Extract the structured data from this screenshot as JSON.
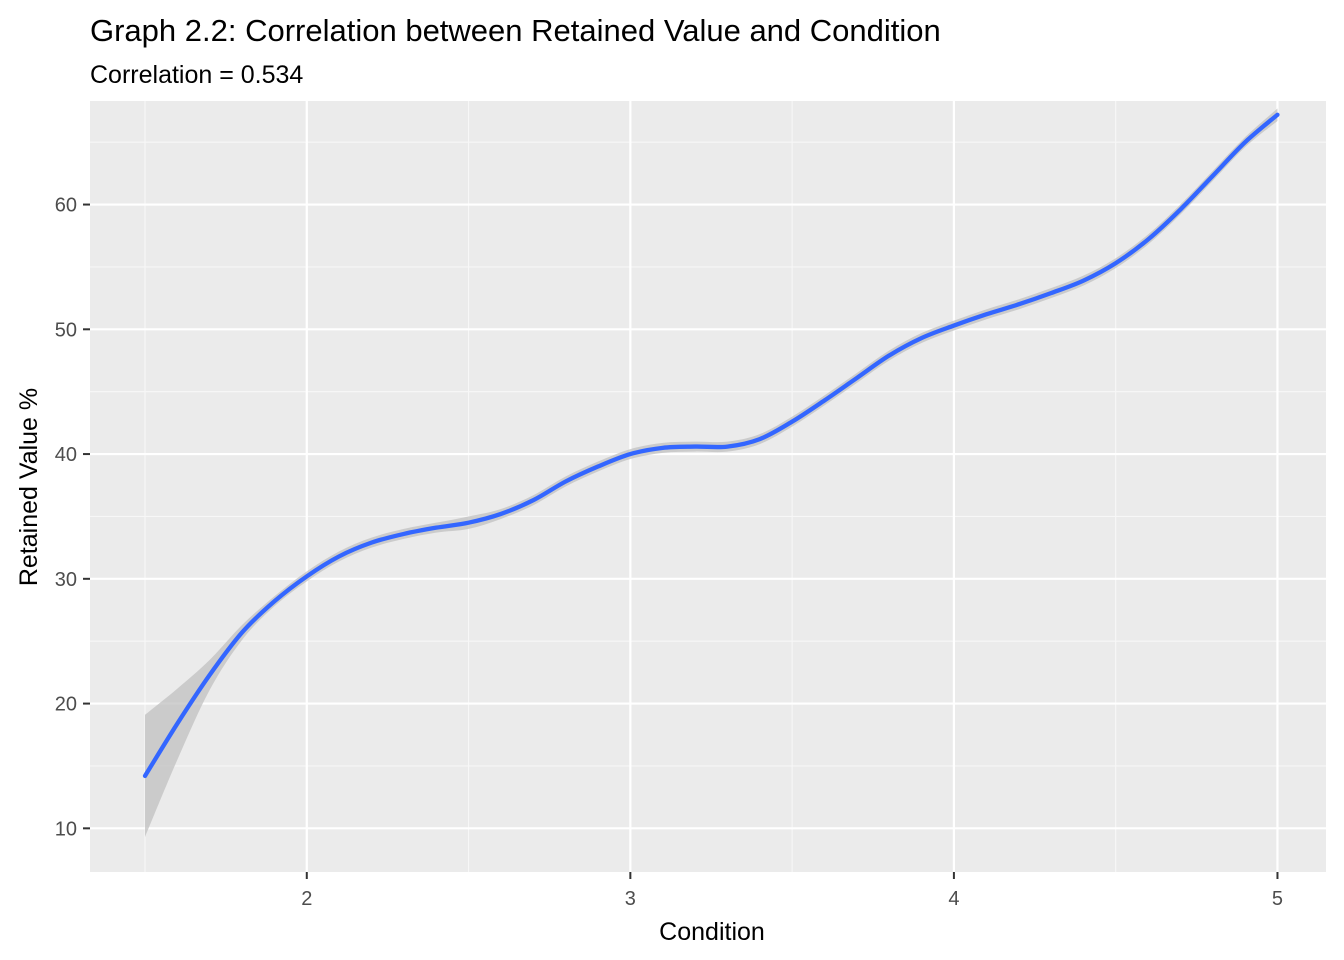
{
  "chart_data": {
    "type": "line",
    "title": "Graph 2.2: Correlation between Retained Value and Condition",
    "subtitle": "Correlation = 0.534",
    "xlabel": "Condition",
    "ylabel": "Retained Value %",
    "xlim": [
      1.33,
      5.15
    ],
    "ylim": [
      6.5,
      68.3
    ],
    "x_ticks": [
      2,
      3,
      4,
      5
    ],
    "x_tick_labels": [
      "2",
      "3",
      "4",
      "5"
    ],
    "y_ticks": [
      10,
      20,
      30,
      40,
      50,
      60
    ],
    "y_tick_labels": [
      "10",
      "20",
      "30",
      "40",
      "50",
      "60"
    ],
    "grid": true,
    "series": [
      {
        "x": [
          1.5,
          1.6,
          1.7,
          1.8,
          1.9,
          2.0,
          2.1,
          2.2,
          2.3,
          2.4,
          2.5,
          2.6,
          2.7,
          2.8,
          2.9,
          3.0,
          3.1,
          3.2,
          3.3,
          3.4,
          3.5,
          3.6,
          3.7,
          3.8,
          3.9,
          4.0,
          4.1,
          4.2,
          4.3,
          4.4,
          4.5,
          4.6,
          4.7,
          4.8,
          4.9,
          5.0
        ],
        "y": [
          14.2,
          18.4,
          22.3,
          25.7,
          28.2,
          30.2,
          31.8,
          32.9,
          33.6,
          34.1,
          34.5,
          35.2,
          36.3,
          37.8,
          39.0,
          40.0,
          40.5,
          40.6,
          40.6,
          41.2,
          42.6,
          44.3,
          46.1,
          47.9,
          49.3,
          50.3,
          51.2,
          52.0,
          52.9,
          53.9,
          55.3,
          57.2,
          59.6,
          62.3,
          65.0,
          67.2
        ],
        "ci_upper": [
          19.1,
          21.2,
          23.5,
          26.3,
          28.6,
          30.6,
          32.2,
          33.3,
          34.0,
          34.5,
          35.0,
          35.6,
          36.7,
          38.2,
          39.4,
          40.4,
          40.9,
          41.0,
          41.0,
          41.6,
          43.0,
          44.7,
          46.5,
          48.3,
          49.7,
          50.7,
          51.6,
          52.4,
          53.3,
          54.3,
          55.7,
          57.6,
          60.0,
          62.7,
          65.4,
          67.7
        ],
        "ci_lower": [
          9.3,
          15.5,
          21.1,
          25.1,
          27.8,
          29.8,
          31.4,
          32.5,
          33.2,
          33.7,
          34.0,
          34.8,
          35.9,
          37.4,
          38.6,
          39.6,
          40.1,
          40.2,
          40.2,
          40.8,
          42.2,
          43.9,
          45.7,
          47.5,
          48.9,
          49.9,
          50.8,
          51.6,
          52.5,
          53.5,
          54.9,
          56.8,
          59.2,
          61.9,
          64.6,
          66.7
        ]
      }
    ],
    "colors": {
      "panel_background": "#ebebeb",
      "grid_major": "#ffffff",
      "grid_minor": "#f7f7f7",
      "line": "#3366ff",
      "ribbon": "#c0c0c0",
      "tick": "#333333",
      "tick_label": "#4d4d4d"
    }
  }
}
